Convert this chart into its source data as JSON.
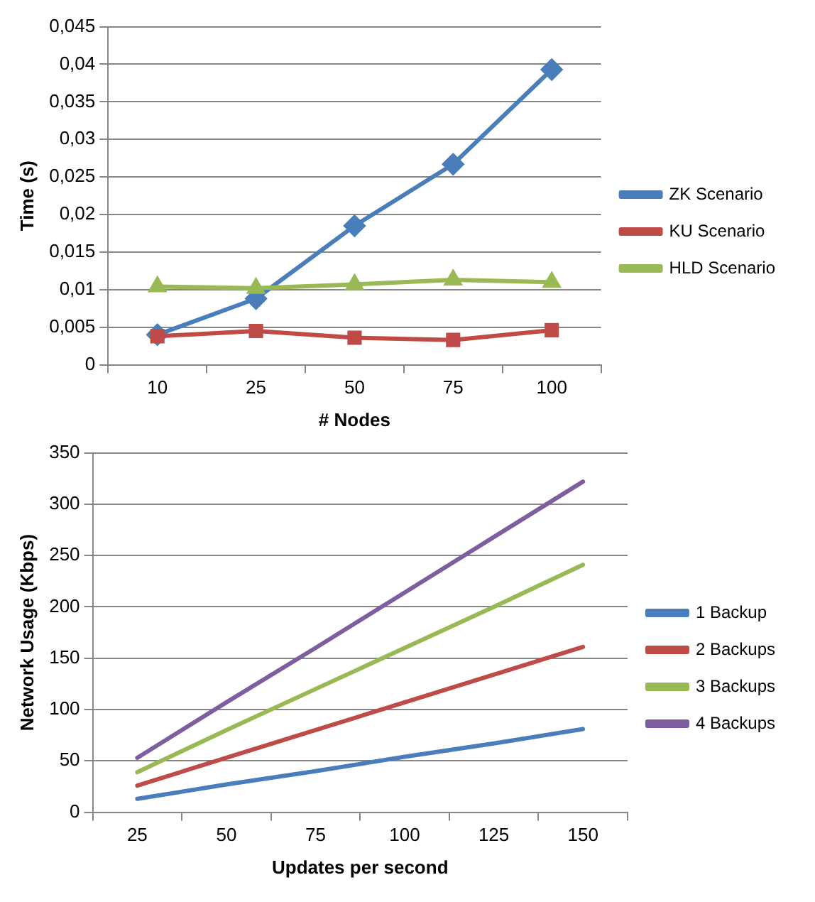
{
  "chart_data": [
    {
      "type": "line",
      "xlabel": "# Nodes",
      "ylabel": "Time (s)",
      "categories": [
        "10",
        "25",
        "50",
        "75",
        "100"
      ],
      "ylim": [
        0,
        0.045
      ],
      "yticks": [
        0,
        {
          "value": 0.005,
          "label": "0,005"
        },
        {
          "value": 0.01,
          "label": "0,01"
        },
        {
          "value": 0.015,
          "label": "0,015"
        },
        {
          "value": 0.02,
          "label": "0,02"
        },
        {
          "value": 0.025,
          "label": "0,025"
        },
        {
          "value": 0.03,
          "label": "0,03"
        },
        {
          "value": 0.035,
          "label": "0,035"
        },
        {
          "value": 0.04,
          "label": "0,04"
        },
        {
          "value": 0.045,
          "label": "0,045"
        }
      ],
      "grid": "y",
      "legend": "right",
      "series": [
        {
          "name": "ZK Scenario",
          "color": "#4a7ebb",
          "marker": "diamond",
          "values": [
            0.004,
            0.0088,
            0.0185,
            0.0267,
            0.0393
          ]
        },
        {
          "name": "KU Scenario",
          "color": "#be4b48",
          "marker": "square",
          "values": [
            0.0038,
            0.0045,
            0.0036,
            0.0033,
            0.0046
          ]
        },
        {
          "name": "HLD Scenario",
          "color": "#98b954",
          "marker": "triangle",
          "values": [
            0.0104,
            0.0102,
            0.0107,
            0.0113,
            0.011
          ]
        }
      ]
    },
    {
      "type": "line",
      "xlabel": "Updates per second",
      "ylabel": "Network Usage (Kbps)",
      "categories": [
        "25",
        "50",
        "75",
        "100",
        "125",
        "150"
      ],
      "ylim": [
        0,
        350
      ],
      "yticks": [
        0,
        50,
        100,
        150,
        200,
        250,
        300,
        350
      ],
      "grid": "y",
      "legend": "right",
      "marker": "none",
      "series": [
        {
          "name": "1 Backup",
          "color": "#4a7ebb",
          "values": [
            13,
            27,
            40,
            54,
            67,
            81
          ]
        },
        {
          "name": "2 Backups",
          "color": "#be4b48",
          "values": [
            26,
            53,
            80,
            107,
            134,
            161
          ]
        },
        {
          "name": "3 Backups",
          "color": "#98b954",
          "values": [
            39,
            80,
            120,
            160,
            200,
            241
          ]
        },
        {
          "name": "4 Backups",
          "color": "#7d5fa0",
          "values": [
            53,
            107,
            160,
            214,
            268,
            322
          ]
        }
      ]
    }
  ]
}
